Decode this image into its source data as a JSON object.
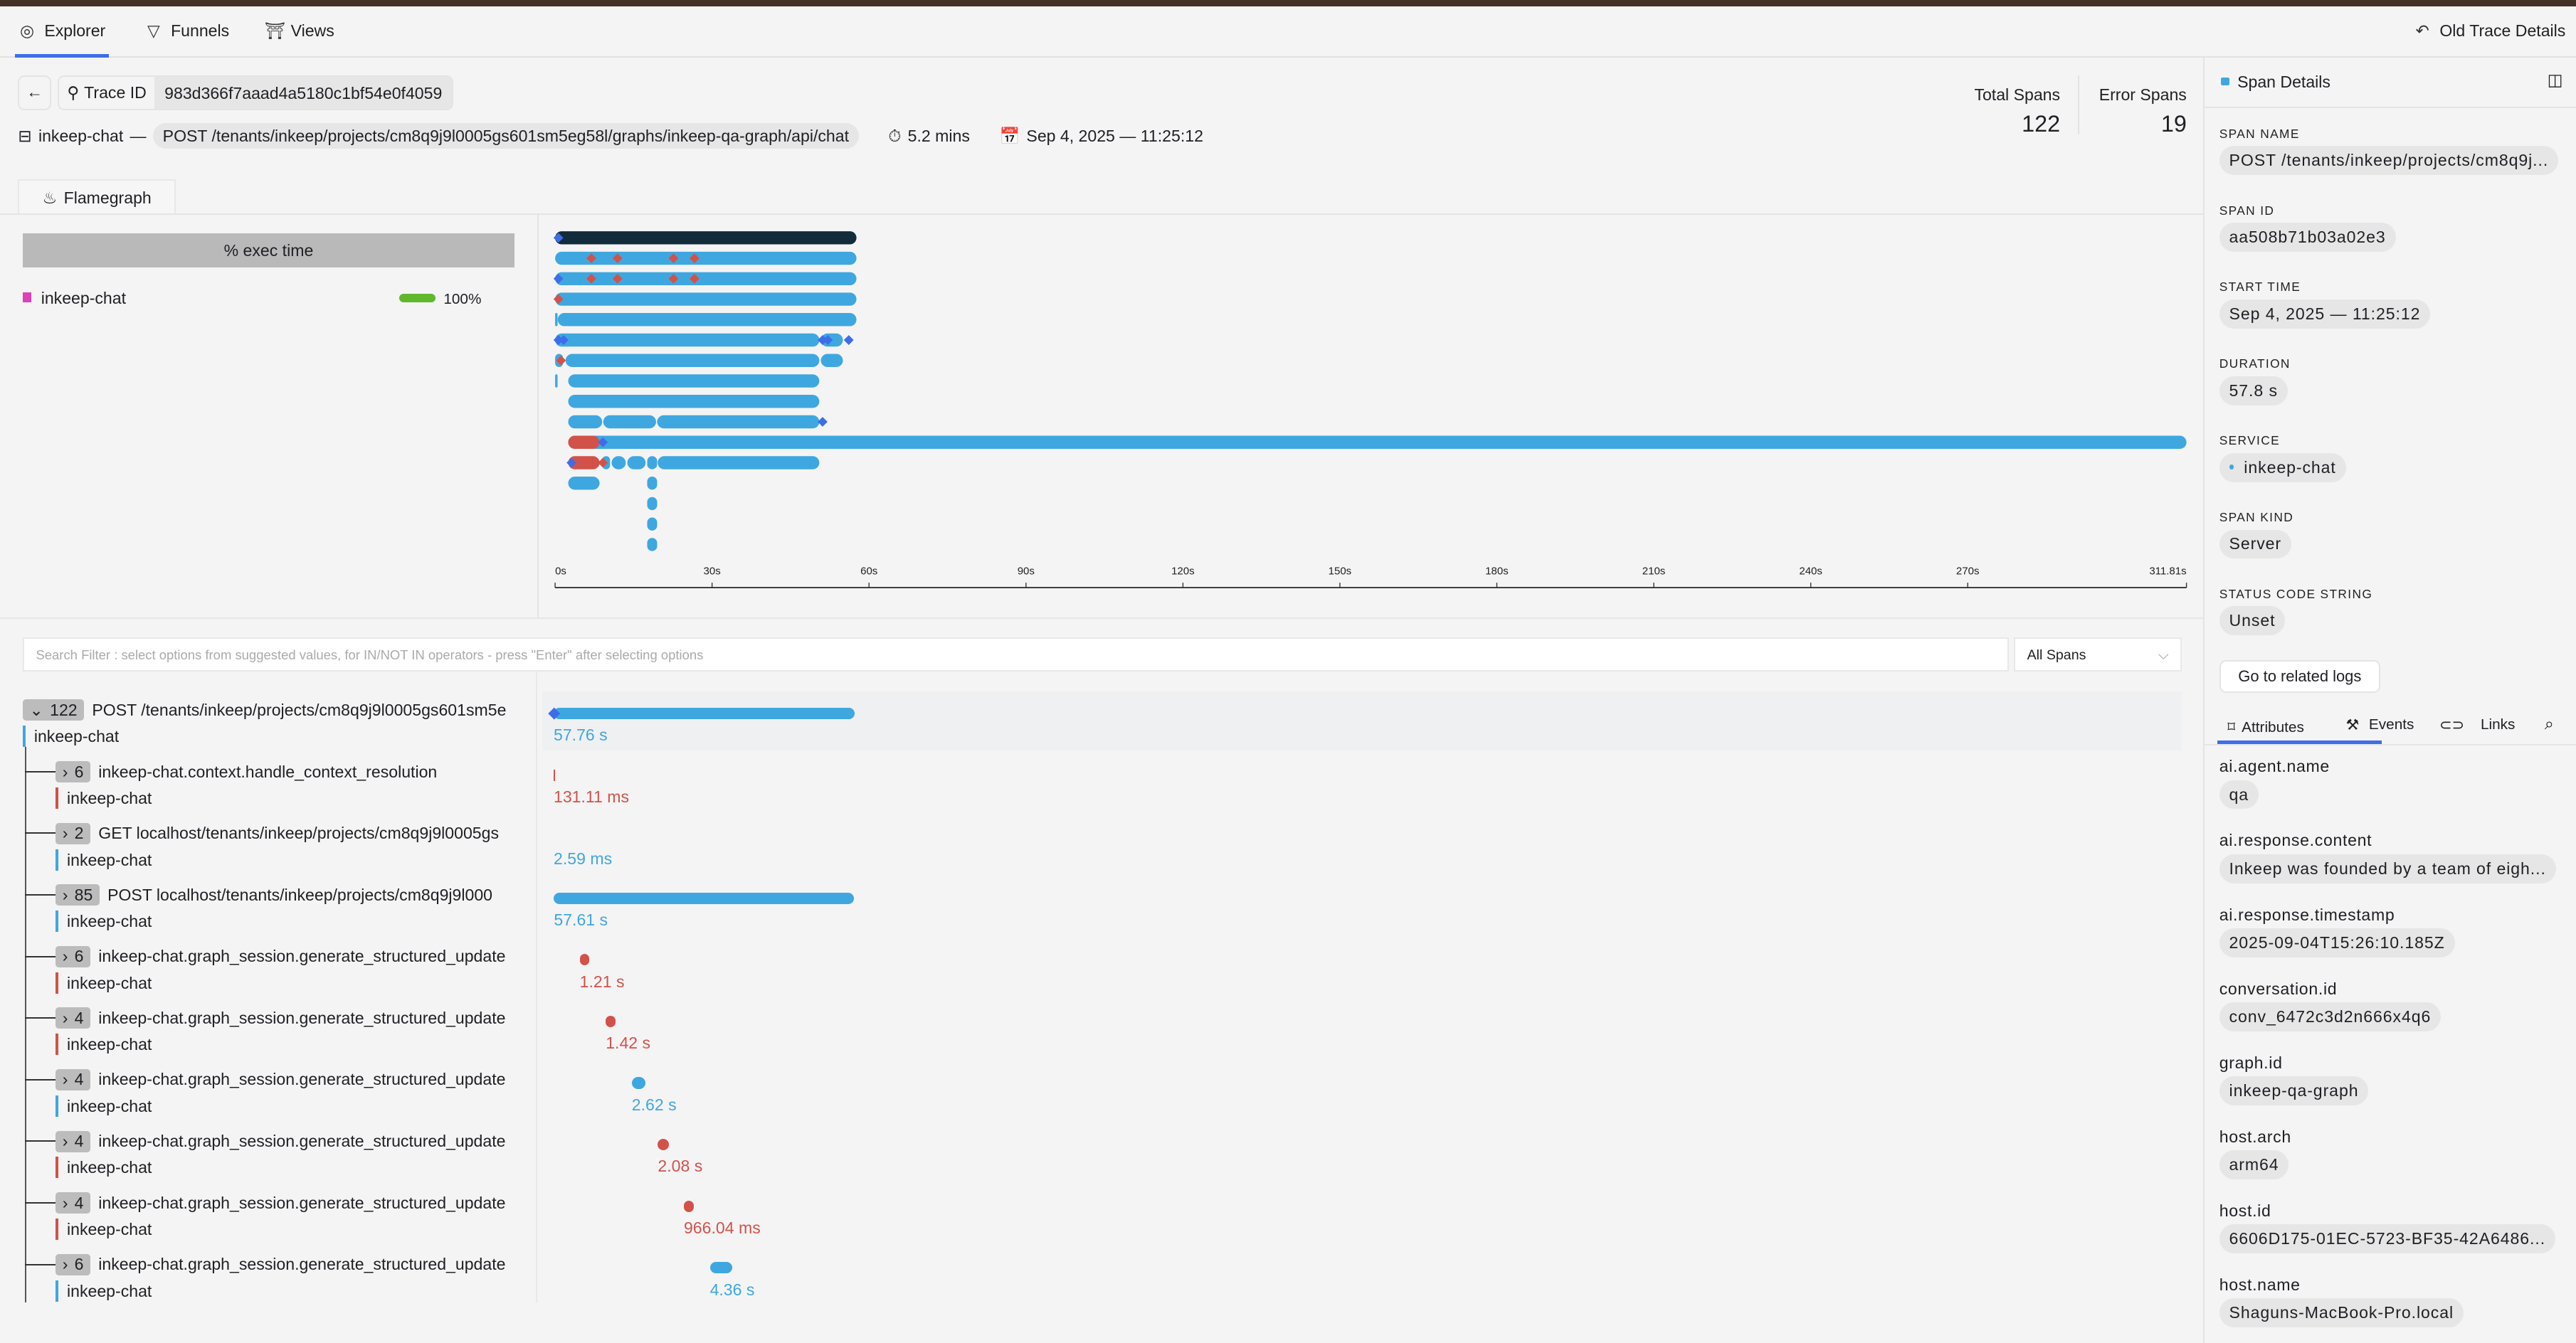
{
  "nav": {
    "tabs": [
      {
        "label": "Explorer",
        "icon": "compass-icon",
        "active": true
      },
      {
        "label": "Funnels",
        "icon": "funnel-icon"
      },
      {
        "label": "Views",
        "icon": "views-icon"
      }
    ],
    "old_trace": "Old Trace Details"
  },
  "trace": {
    "id_label": "Trace ID",
    "id": "983d366f7aaad4a5180c1bf54e0f4059",
    "service": "inkeep-chat",
    "dash": "—",
    "root_span": "POST /tenants/inkeep/projects/cm8q9j9l0005gs601sm5eg58l/graphs/inkeep-qa-graph/api/chat",
    "duration": "5.2 mins",
    "date": "Sep 4, 2025 — 11:25:12",
    "total_label": "Total Spans",
    "total": "122",
    "error_label": "Error Spans",
    "errors": "19"
  },
  "flame_tab": "Flamegraph",
  "exec": {
    "header": "% exec time",
    "service": "inkeep-chat",
    "percent": "100%",
    "service_color": "#e040b8",
    "bar_color": "#5fb82c",
    "fraction": 1.0
  },
  "flamegraph": {
    "axis_max": 311.81,
    "ticks": [
      "0s",
      "30s",
      "60s",
      "90s",
      "120s",
      "150s",
      "180s",
      "210s",
      "240s",
      "270s",
      "311.81s"
    ],
    "tick_values": [
      0,
      30,
      60,
      90,
      120,
      150,
      180,
      210,
      240,
      270,
      311.81
    ],
    "colors": {
      "root": "#132c3b",
      "ok": "#3fa7e0",
      "error": "#d2524a",
      "event": "#3e6de8"
    },
    "rows": [
      {
        "segs": [
          [
            0,
            57.6,
            "root"
          ]
        ],
        "events": [
          [
            0,
            "event"
          ]
        ]
      },
      {
        "segs": [
          [
            0,
            57.6,
            "ok"
          ]
        ],
        "events": [
          [
            6.3,
            "error"
          ],
          [
            11.3,
            "error"
          ],
          [
            22,
            "error"
          ],
          [
            26,
            "error"
          ]
        ]
      },
      {
        "segs": [
          [
            0,
            57.6,
            "ok"
          ]
        ],
        "events": [
          [
            0,
            "event"
          ],
          [
            6.3,
            "error"
          ],
          [
            11.3,
            "error"
          ],
          [
            22,
            "error"
          ],
          [
            26,
            "error"
          ]
        ]
      },
      {
        "segs": [
          [
            0,
            57.6,
            "ok"
          ]
        ],
        "events": [
          [
            0,
            "error"
          ]
        ]
      },
      {
        "segs": [
          [
            0,
            0.3,
            "ok"
          ],
          [
            0.5,
            57.6,
            "ok"
          ]
        ],
        "events": []
      },
      {
        "segs": [
          [
            0,
            50.5,
            "ok"
          ],
          [
            50.8,
            55,
            "ok"
          ]
        ],
        "events": [
          [
            0,
            "event"
          ],
          [
            1,
            "event"
          ],
          [
            50.5,
            "event"
          ],
          [
            51.5,
            "event"
          ],
          [
            55.5,
            "event"
          ]
        ]
      },
      {
        "segs": [
          [
            0,
            1.5,
            "ok"
          ],
          [
            2,
            50.5,
            "ok"
          ],
          [
            50.8,
            55,
            "ok"
          ]
        ],
        "events": [
          [
            0.5,
            "error"
          ]
        ]
      },
      {
        "segs": [
          [
            0,
            0.3,
            "ok"
          ],
          [
            2.5,
            50.5,
            "ok"
          ]
        ],
        "events": []
      },
      {
        "segs": [
          [
            2.5,
            50.5,
            "ok"
          ]
        ],
        "events": []
      },
      {
        "segs": [
          [
            2.5,
            9,
            "ok"
          ],
          [
            9.2,
            19.3,
            "ok"
          ],
          [
            19.5,
            50.5,
            "ok"
          ]
        ],
        "events": [
          [
            50.5,
            "event"
          ]
        ]
      },
      {
        "segs": [
          [
            2.5,
            311.81,
            "ok"
          ],
          [
            2.5,
            8.5,
            "error"
          ]
        ],
        "events": [
          [
            8.5,
            "event"
          ]
        ]
      },
      {
        "segs": [
          [
            2.5,
            8.5,
            "error"
          ],
          [
            9,
            10.5,
            "ok"
          ],
          [
            10.8,
            13.5,
            "ok"
          ],
          [
            13.8,
            17.3,
            "ok"
          ],
          [
            17.6,
            19.5,
            "ok"
          ],
          [
            19.6,
            50.5,
            "ok"
          ]
        ],
        "events": [
          [
            2.5,
            "event"
          ],
          [
            8.5,
            "error"
          ]
        ]
      },
      {
        "segs": [
          [
            2.5,
            8.5,
            "ok"
          ],
          [
            17.6,
            19.5,
            "ok"
          ]
        ],
        "events": []
      },
      {
        "segs": [
          [
            17.6,
            19.5,
            "ok"
          ]
        ],
        "events": []
      },
      {
        "segs": [
          [
            17.6,
            19.5,
            "ok"
          ]
        ],
        "events": []
      },
      {
        "segs": [
          [
            17.6,
            19.5,
            "ok"
          ]
        ],
        "events": []
      }
    ]
  },
  "search": {
    "placeholder": "Search Filter : select options from suggested values, for IN/NOT IN operators - press \"Enter\" after selecting options",
    "filter": "All Spans"
  },
  "spans": [
    {
      "count": "122",
      "expanded": true,
      "name": "POST /tenants/inkeep/projects/cm8q9j9l0005gs601sm5e",
      "service": "inkeep-chat",
      "status": "ok",
      "duration": "57.76 s",
      "start": 0,
      "dur_s": 57.76
    },
    {
      "count": "6",
      "name": "inkeep-chat.context.handle_context_resolution",
      "service": "inkeep-chat",
      "status": "error",
      "duration": "131.11 ms",
      "start": 0,
      "dur_s": 0.13
    },
    {
      "count": "2",
      "name": "GET localhost/tenants/inkeep/projects/cm8q9j9l0005gs",
      "service": "inkeep-chat",
      "status": "ok",
      "duration": "2.59 ms",
      "start": 0,
      "dur_s": 0.0026
    },
    {
      "count": "85",
      "name": "POST localhost/tenants/inkeep/projects/cm8q9j9l000",
      "service": "inkeep-chat",
      "status": "ok",
      "duration": "57.61 s",
      "start": 0.05,
      "dur_s": 57.61
    },
    {
      "count": "6",
      "name": "inkeep-chat.graph_session.generate_structured_update",
      "service": "inkeep-chat",
      "status": "error",
      "duration": "1.21 s",
      "start": 5,
      "dur_s": 1.21
    },
    {
      "count": "4",
      "name": "inkeep-chat.graph_session.generate_structured_update",
      "service": "inkeep-chat",
      "status": "error",
      "duration": "1.42 s",
      "start": 10,
      "dur_s": 1.42
    },
    {
      "count": "4",
      "name": "inkeep-chat.graph_session.generate_structured_update",
      "service": "inkeep-chat",
      "status": "ok",
      "duration": "2.62 s",
      "start": 15,
      "dur_s": 2.62
    },
    {
      "count": "4",
      "name": "inkeep-chat.graph_session.generate_structured_update",
      "service": "inkeep-chat",
      "status": "error",
      "duration": "2.08 s",
      "start": 20,
      "dur_s": 2.08
    },
    {
      "count": "4",
      "name": "inkeep-chat.graph_session.generate_structured_update",
      "service": "inkeep-chat",
      "status": "error",
      "duration": "966.04 ms",
      "start": 25,
      "dur_s": 0.97
    },
    {
      "count": "6",
      "name": "inkeep-chat.graph_session.generate_structured_update",
      "service": "inkeep-chat",
      "status": "ok",
      "duration": "4.36 s",
      "start": 30,
      "dur_s": 4.36
    }
  ],
  "details": {
    "title": "Span Details",
    "fields": [
      {
        "label": "Span Name",
        "value": "POST /tenants/inkeep/projects/cm8q9j..."
      },
      {
        "label": "Span ID",
        "value": "aa508b71b03a02e3"
      },
      {
        "label": "Start Time",
        "value": "Sep 4, 2025 — 11:25:12"
      },
      {
        "label": "Duration",
        "value": "57.8 s"
      },
      {
        "label": "Service",
        "value": "inkeep-chat"
      },
      {
        "label": "Span Kind",
        "value": "Server"
      },
      {
        "label": "Status Code String",
        "value": "Unset"
      }
    ],
    "logs_button": "Go to related logs",
    "tabs": [
      {
        "label": "Attributes",
        "active": true
      },
      {
        "label": "Events"
      },
      {
        "label": "Links"
      }
    ],
    "attributes": [
      {
        "key": "ai.agent.name",
        "value": "qa"
      },
      {
        "key": "ai.response.content",
        "value": "Inkeep was founded by a team of eigh..."
      },
      {
        "key": "ai.response.timestamp",
        "value": "2025-09-04T15:26:10.185Z"
      },
      {
        "key": "conversation.id",
        "value": "conv_6472c3d2n666x4q6"
      },
      {
        "key": "graph.id",
        "value": "inkeep-qa-graph"
      },
      {
        "key": "host.arch",
        "value": "arm64"
      },
      {
        "key": "host.id",
        "value": "6606D175-01EC-5723-BF35-42A6486..."
      },
      {
        "key": "host.name",
        "value": "Shaguns-MacBook-Pro.local"
      }
    ]
  }
}
